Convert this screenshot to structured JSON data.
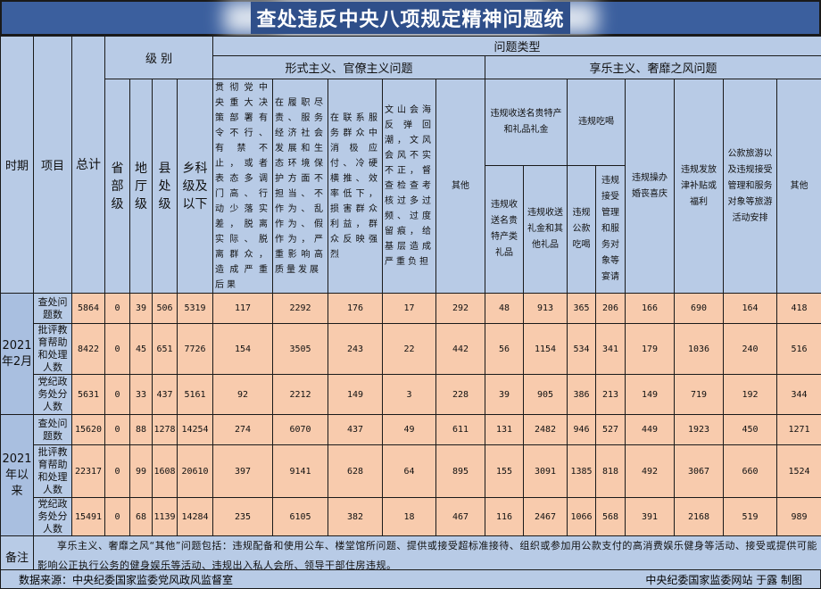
{
  "title": "查处违反中央八项规定精神问题统",
  "header": {
    "period": "时期",
    "item": "项目",
    "total": "总计",
    "level": "级 别",
    "problem_type": "问题类型",
    "levels": [
      "省部级",
      "地厅级",
      "县处级",
      "乡科级及以下"
    ],
    "group_formalism": "形式主义、官僚主义问题",
    "group_hedonism": "享乐主义、奢靡之风问题",
    "formalism_cols": [
      "贯彻党中央重大决策部署有令不行、有禁不止，或者表态多调门高、行动少落实差，脱离实际、脱离群众，造成严重后果",
      "在履职尽责、服务经济社会发展和生态环境保护方面不担当、不作为、乱作为、假作为，严重影响高质量发展",
      "在联系服务群众中消极应付、冷硬横推、效率低下，损害群众利益，群众反映强烈",
      "文山会海反弹回潮，文风会风不实不正，督查检查考核过多过频、过度留痕，给基层造成严重负担",
      "其他"
    ],
    "gifts": "违规收送名贵特产和礼品礼金",
    "gifts_sub": [
      "违规收送名贵特产类礼品",
      "违规收送礼金和其他礼品"
    ],
    "dining": "违规吃喝",
    "dining_sub": [
      "违规公款吃喝",
      "违规接受管理和服务对象等宴请"
    ],
    "hedonism_cols": [
      "违规操办婚丧喜庆",
      "违规发放津补贴或福利",
      "公款旅游以及违规接受管理和服务对象等旅游活动安排",
      "其他"
    ]
  },
  "rows": [
    {
      "period": "2021年2月",
      "item": "查处问题数",
      "values": [
        5864,
        0,
        39,
        506,
        5319,
        117,
        2292,
        176,
        17,
        292,
        48,
        913,
        365,
        206,
        166,
        690,
        164,
        418
      ]
    },
    {
      "period": "2021年2月",
      "item": "批评教育帮助和处理人数",
      "values": [
        8422,
        0,
        45,
        651,
        7726,
        154,
        3505,
        243,
        22,
        442,
        56,
        1154,
        534,
        341,
        179,
        1036,
        240,
        516
      ]
    },
    {
      "period": "2021年2月",
      "item": "党纪政务处分人数",
      "values": [
        5631,
        0,
        33,
        437,
        5161,
        92,
        2212,
        149,
        3,
        228,
        39,
        905,
        386,
        213,
        149,
        719,
        192,
        344
      ]
    },
    {
      "period": "2021年以来",
      "item": "查处问题数",
      "values": [
        15620,
        0,
        88,
        1278,
        14254,
        274,
        6070,
        437,
        49,
        611,
        131,
        2482,
        946,
        527,
        449,
        1923,
        450,
        1271
      ]
    },
    {
      "period": "2021年以来",
      "item": "批评教育帮助和处理人数",
      "values": [
        22317,
        0,
        99,
        1608,
        20610,
        397,
        9141,
        628,
        64,
        895,
        155,
        3091,
        1385,
        818,
        492,
        3067,
        660,
        1524
      ]
    },
    {
      "period": "2021年以来",
      "item": "党纪政务处分人数",
      "values": [
        15491,
        0,
        68,
        1139,
        14284,
        235,
        6105,
        382,
        18,
        467,
        116,
        2467,
        1066,
        568,
        391,
        2168,
        519,
        989
      ]
    }
  ],
  "note": {
    "label": "备注",
    "text": "享乐主义、奢靡之风“其他”问题包括：违规配备和使用公车、楼堂馆所问题、提供或接受超标准接待、组织或参加用公款支付的高消费娱乐健身等活动、接受或提供可能影响公正执行公务的健身娱乐等活动、违规出入私人会所、领导干部住房违规。"
  },
  "footer": {
    "source": "数据来源：中央纪委国家监委党风政风监督室",
    "credit": "中央纪委国家监委网站 于露 制图"
  },
  "colors": {
    "header": "#b8cbe6",
    "data": "#f8cbad",
    "title_bar": "#3b5f9e"
  }
}
